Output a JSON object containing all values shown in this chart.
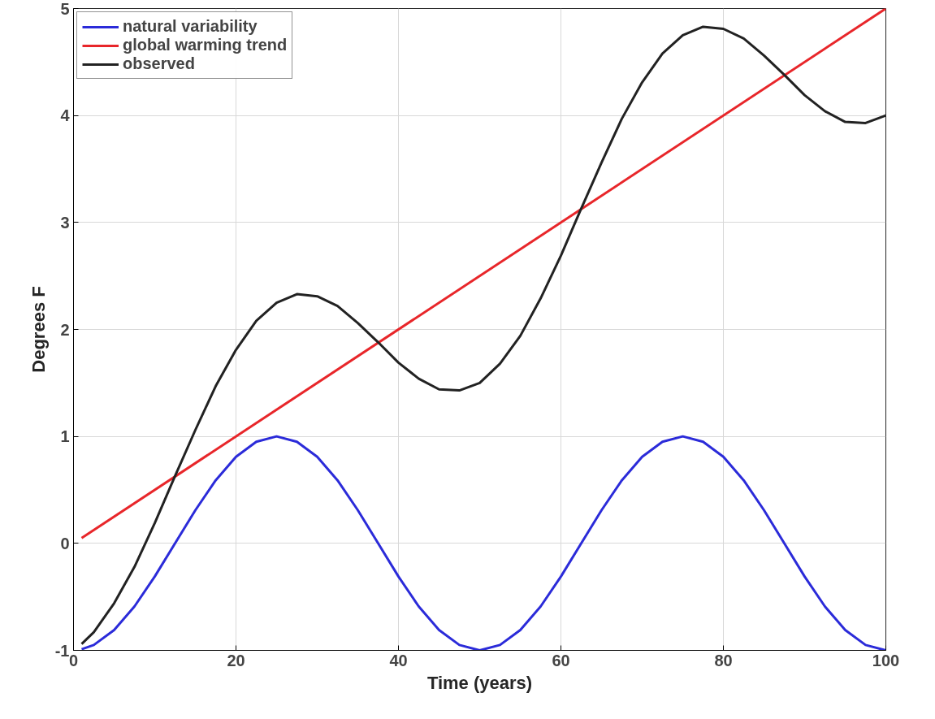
{
  "chart_data": {
    "type": "line",
    "xlabel": "Time (years)",
    "ylabel": "Degrees F",
    "xlim": [
      0,
      100
    ],
    "ylim": [
      -1,
      5
    ],
    "xticks": [
      0,
      20,
      40,
      60,
      80,
      100
    ],
    "yticks": [
      -1,
      0,
      1,
      2,
      3,
      4,
      5
    ],
    "grid": true,
    "legend": "top left",
    "marker": "none",
    "line_style": "solid",
    "x": [
      1,
      2.5,
      5,
      7.5,
      10,
      12.5,
      15,
      17.5,
      20,
      22.5,
      25,
      27.5,
      30,
      32.5,
      35,
      37.5,
      40,
      42.5,
      45,
      47.5,
      50,
      52.5,
      55,
      57.5,
      60,
      62.5,
      65,
      67.5,
      70,
      72.5,
      75,
      77.5,
      80,
      82.5,
      85,
      87.5,
      90,
      92.5,
      95,
      97.5,
      100
    ],
    "series": [
      {
        "name": "natural variability",
        "color": "#2b2bd9",
        "values": [
          -0.99,
          -0.95,
          -0.81,
          -0.59,
          -0.31,
          0,
          0.31,
          0.59,
          0.81,
          0.95,
          1,
          0.95,
          0.81,
          0.59,
          0.31,
          0,
          -0.31,
          -0.59,
          -0.81,
          -0.95,
          -1,
          -0.95,
          -0.81,
          -0.59,
          -0.31,
          0,
          0.31,
          0.59,
          0.81,
          0.95,
          1,
          0.95,
          0.81,
          0.59,
          0.31,
          0,
          -0.31,
          -0.59,
          -0.81,
          -0.95,
          -1
        ]
      },
      {
        "name": "global warming trend",
        "color": "#e8262a",
        "x": [
          1,
          100
        ],
        "values": [
          0.05,
          5
        ]
      },
      {
        "name": "observed",
        "color": "#222222",
        "values": [
          -0.94,
          -0.83,
          -0.56,
          -0.22,
          0.19,
          0.63,
          1.06,
          1.47,
          1.81,
          2.08,
          2.25,
          2.33,
          2.31,
          2.22,
          2.06,
          1.88,
          1.69,
          1.54,
          1.44,
          1.43,
          1.5,
          1.68,
          1.94,
          2.29,
          2.69,
          3.13,
          3.56,
          3.97,
          4.31,
          4.58,
          4.75,
          4.83,
          4.81,
          4.72,
          4.56,
          4.38,
          4.19,
          4.04,
          3.94,
          3.93,
          4.0
        ]
      }
    ]
  }
}
